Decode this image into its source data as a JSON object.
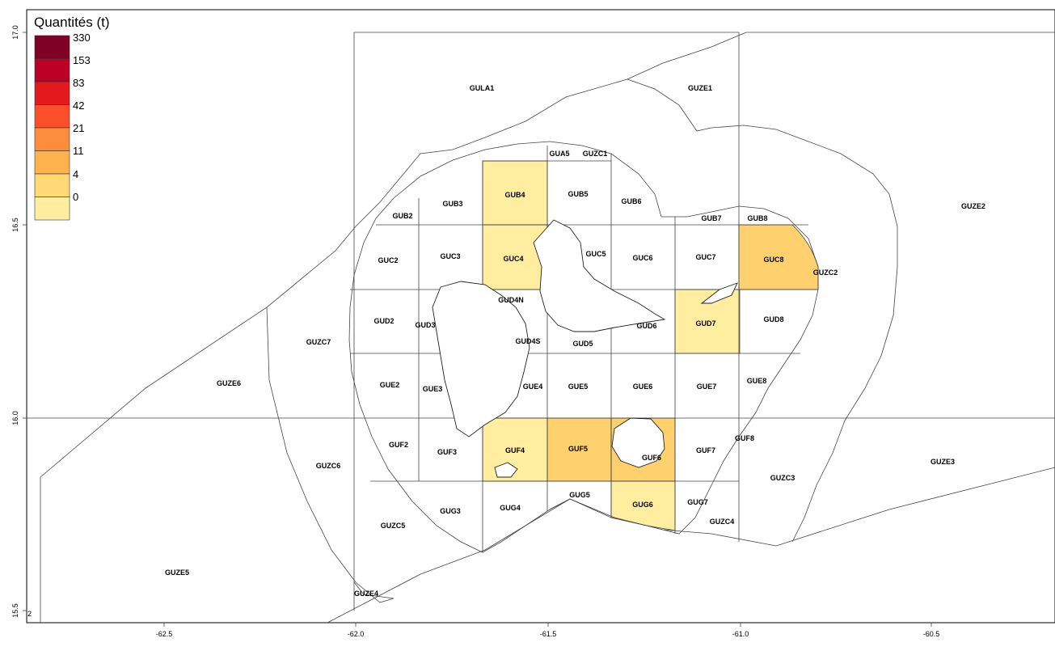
{
  "legend": {
    "title": "Quantités (t)",
    "breaks": [
      "330",
      "153",
      "83",
      "42",
      "21",
      "11",
      "4",
      "0"
    ],
    "colors": [
      "#800026",
      "#bd0026",
      "#e31a1c",
      "#fc4e2a",
      "#fd8d3c",
      "#feb24c",
      "#fed976",
      "#ffeda0"
    ]
  },
  "fill_colors": {
    "low": "#ffeda0",
    "mid": "#fed06e",
    "none": "#ffffff"
  },
  "axes": {
    "x_ticks": [
      "-62.5",
      "-62.0",
      "-61.5",
      "-61.0",
      "-60.5"
    ],
    "y_ticks": [
      "17.0",
      "16.5",
      "16.0",
      "15.5"
    ],
    "corner_mark": "2"
  },
  "zones": {
    "GULA1": "GULA1",
    "GUZE1": "GUZE1",
    "GUA5": "GUA5",
    "GUZC1": "GUZC1",
    "GUB2": "GUB2",
    "GUB3": "GUB3",
    "GUB4": "GUB4",
    "GUB5": "GUB5",
    "GUB6": "GUB6",
    "GUB7": "GUB7",
    "GUB8": "GUB8",
    "GUZE2": "GUZE2",
    "GUC2": "GUC2",
    "GUC3": "GUC3",
    "GUC4": "GUC4",
    "GUC5": "GUC5",
    "GUC6": "GUC6",
    "GUC7": "GUC7",
    "GUC8": "GUC8",
    "GUZC2": "GUZC2",
    "GUD4N": "GUD4N",
    "GUD2": "GUD2",
    "GUD3": "GUD3",
    "GUZC7": "GUZC7",
    "GUD4S": "GUD4S",
    "GUD5": "GUD5",
    "GUD6": "GUD6",
    "GUD7": "GUD7",
    "GUD8": "GUD8",
    "GUZE6": "GUZE6",
    "GUE2": "GUE2",
    "GUE3": "GUE3",
    "GUE4": "GUE4",
    "GUE5": "GUE5",
    "GUE6": "GUE6",
    "GUE7": "GUE7",
    "GUE8": "GUE8",
    "GUF2": "GUF2",
    "GUF3": "GUF3",
    "GUF4": "GUF4",
    "GUF5": "GUF5",
    "GUF6": "GUF6",
    "GUF7": "GUF7",
    "GUF8": "GUF8",
    "GUZC6": "GUZC6",
    "GUZE3": "GUZE3",
    "GUZC3": "GUZC3",
    "GUG3": "GUG3",
    "GUG4": "GUG4",
    "GUG5": "GUG5",
    "GUG6": "GUG6",
    "GUG7": "GUG7",
    "GUZC4": "GUZC4",
    "GUZC5": "GUZC5",
    "GUZE5": "GUZE5",
    "GUZE4": "GUZE4"
  }
}
